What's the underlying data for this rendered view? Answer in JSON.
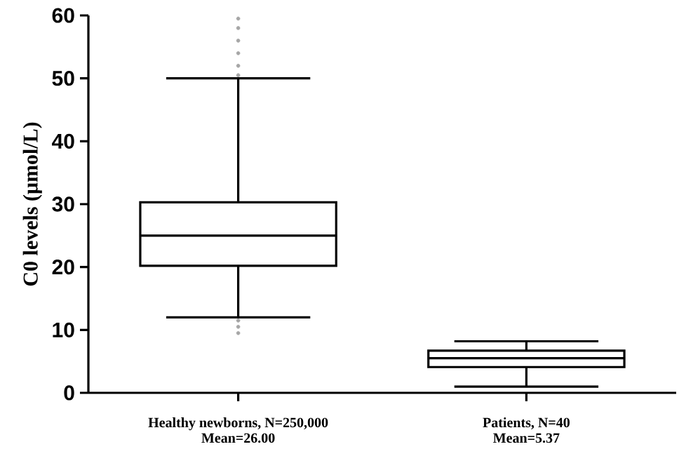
{
  "chart_data": {
    "type": "box",
    "ylabel": "C0 levels (μmol/L)",
    "categories": [
      "Healthy newborns, N=250,000 Mean=26.00",
      "Patients, N=40 Mean=5.37"
    ],
    "ylim": [
      0,
      60
    ],
    "yticks": [
      0,
      10,
      20,
      30,
      40,
      50,
      60
    ],
    "boxes": [
      {
        "low": 12,
        "q1": 20.2,
        "median": 25,
        "q3": 30.3,
        "high": 50,
        "outliers": [
          50.5,
          52,
          54,
          56,
          58,
          59.5,
          9.5,
          10.5,
          11.5
        ]
      },
      {
        "low": 1,
        "q1": 4.1,
        "median": 5.5,
        "q3": 6.7,
        "high": 8.2
      }
    ]
  }
}
